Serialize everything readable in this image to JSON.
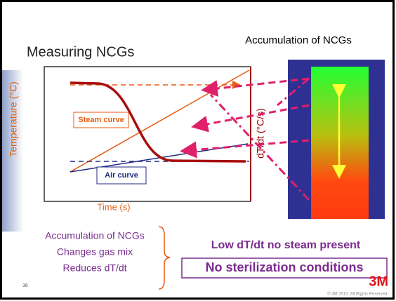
{
  "slide": {
    "title": "Measuring NCGs",
    "panel_title": "Accumulation of NCGs",
    "diagram": {
      "y_label": "Temperature (°C)",
      "y2_label": "dT/dt (°C/s)",
      "x_label": "Time (s)",
      "steam_label": "Steam curve",
      "air_label": "Air curve"
    },
    "effects": [
      "Accumulation of NCGs",
      "Changes gas mix",
      "Reduces dT/dt"
    ],
    "conclusion": "Low dT/dt no steam present",
    "result": "No sterilization conditions",
    "page_number": "36",
    "copyright": "© 3M 2010.  All Rights Reserved.",
    "logo": "3M"
  }
}
